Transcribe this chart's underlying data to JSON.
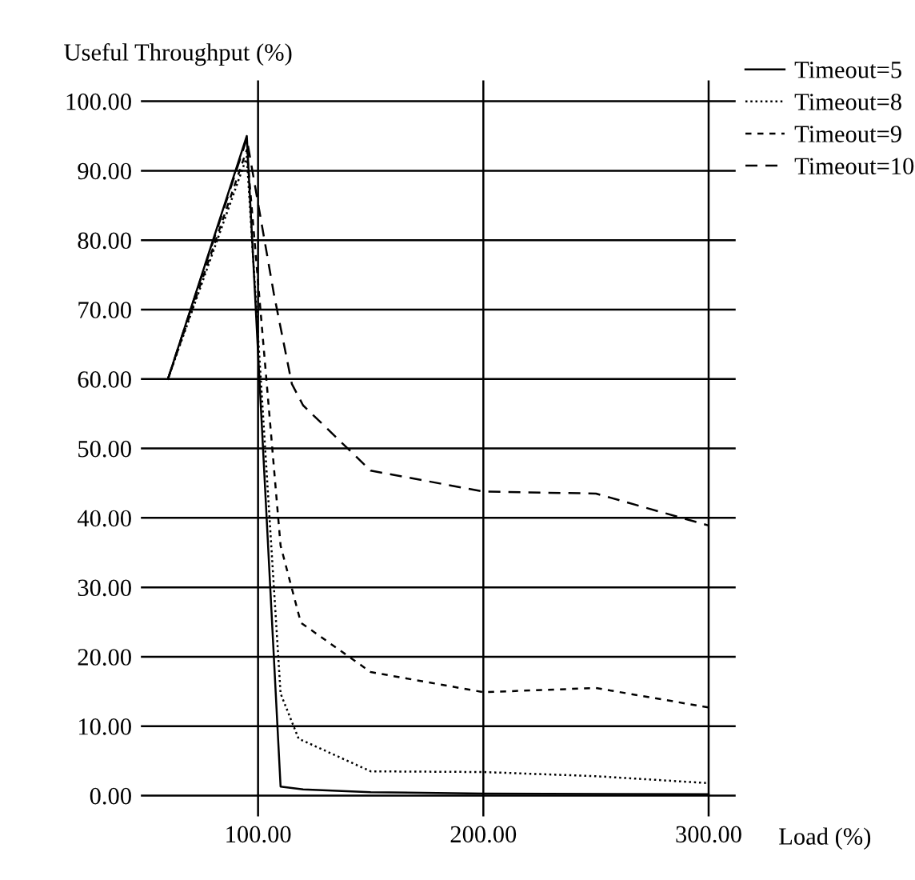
{
  "chart_data": {
    "type": "line",
    "xlabel": "Load (%)",
    "ylabel": "Useful Throughput (%)",
    "xlim": [
      48,
      312
    ],
    "ylim": [
      -3,
      103
    ],
    "xticks": [
      {
        "value": 100,
        "label": "100.00"
      },
      {
        "value": 200,
        "label": "200.00"
      },
      {
        "value": 300,
        "label": "300.00"
      }
    ],
    "yticks": [
      {
        "value": 0,
        "label": "0.00"
      },
      {
        "value": 10,
        "label": "10.00"
      },
      {
        "value": 20,
        "label": "20.00"
      },
      {
        "value": 30,
        "label": "30.00"
      },
      {
        "value": 40,
        "label": "40.00"
      },
      {
        "value": 50,
        "label": "50.00"
      },
      {
        "value": 60,
        "label": "60.00"
      },
      {
        "value": 70,
        "label": "70.00"
      },
      {
        "value": 80,
        "label": "80.00"
      },
      {
        "value": 90,
        "label": "90.00"
      },
      {
        "value": 100,
        "label": "100.00"
      }
    ],
    "grid": true,
    "legend": "top right",
    "series": [
      {
        "name": "Timeout=5",
        "color": "#000000",
        "line_style": "solid",
        "x": [
          60,
          95,
          110,
          120,
          150,
          200,
          300
        ],
        "values": [
          60,
          95,
          1.3,
          0.9,
          0.5,
          0.3,
          0.2
        ]
      },
      {
        "name": "Timeout=8",
        "color": "#000000",
        "line_style": "dotted",
        "x": [
          60,
          95,
          110,
          118,
          150,
          200,
          250,
          300
        ],
        "values": [
          60,
          92,
          14.7,
          8.2,
          3.5,
          3.4,
          2.8,
          1.8
        ]
      },
      {
        "name": "Timeout=9",
        "color": "#000000",
        "line_style": "dashed_short",
        "x": [
          60,
          95,
          110,
          119,
          150,
          200,
          250,
          300
        ],
        "values": [
          60,
          93,
          36,
          24.9,
          17.8,
          14.9,
          15.5,
          12.7
        ]
      },
      {
        "name": "Timeout=10",
        "color": "#000000",
        "line_style": "dashed",
        "x": [
          60,
          95,
          107,
          115,
          120,
          150,
          200,
          250,
          300
        ],
        "values": [
          60,
          94.6,
          72.3,
          59.3,
          56.2,
          46.8,
          43.8,
          43.5,
          38.9
        ]
      }
    ]
  }
}
